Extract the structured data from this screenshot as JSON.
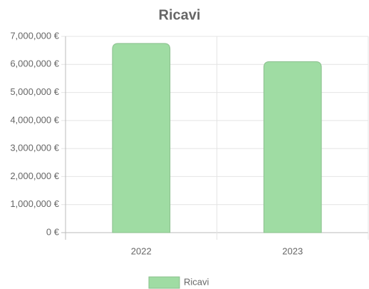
{
  "chart_data": {
    "type": "bar",
    "title": "Ricavi",
    "categories": [
      "2022",
      "2023"
    ],
    "series": [
      {
        "name": "Ricavi",
        "color": "#9fdca3",
        "values": [
          6750000,
          6100000
        ]
      }
    ],
    "ylim": [
      0,
      7000000
    ],
    "yticks": [
      {
        "value": 0,
        "label": "0 €"
      },
      {
        "value": 1000000,
        "label": "1,000,000 €"
      },
      {
        "value": 2000000,
        "label": "2,000,000 €"
      },
      {
        "value": 3000000,
        "label": "3,000,000 €"
      },
      {
        "value": 4000000,
        "label": "4,000,000 €"
      },
      {
        "value": 5000000,
        "label": "5,000,000 €"
      },
      {
        "value": 6000000,
        "label": "6,000,000 €"
      },
      {
        "value": 7000000,
        "label": "7,000,000 €"
      }
    ],
    "grid": true,
    "legend": "bottom"
  }
}
